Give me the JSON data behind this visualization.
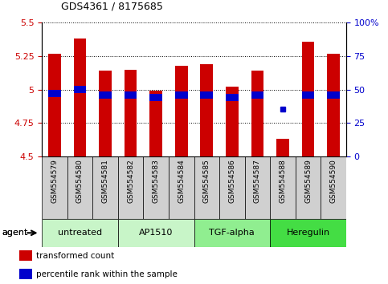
{
  "title": "GDS4361 / 8175685",
  "samples": [
    "GSM554579",
    "GSM554580",
    "GSM554581",
    "GSM554582",
    "GSM554583",
    "GSM554584",
    "GSM554585",
    "GSM554586",
    "GSM554587",
    "GSM554588",
    "GSM554589",
    "GSM554590"
  ],
  "red_values": [
    5.27,
    5.38,
    5.14,
    5.15,
    4.99,
    5.18,
    5.19,
    5.02,
    5.14,
    4.63,
    5.36,
    5.27
  ],
  "blue_values": [
    4.97,
    5.0,
    4.96,
    4.96,
    4.94,
    4.96,
    4.96,
    4.94,
    4.96,
    4.85,
    4.96,
    4.96
  ],
  "blue_is_dot": [
    false,
    false,
    false,
    false,
    false,
    false,
    false,
    false,
    false,
    true,
    false,
    false
  ],
  "ylim_left": [
    4.5,
    5.5
  ],
  "ylim_right": [
    0,
    100
  ],
  "yticks_left": [
    4.5,
    4.75,
    5.0,
    5.25,
    5.5
  ],
  "yticks_right": [
    0,
    25,
    50,
    75,
    100
  ],
  "ytick_labels_left": [
    "4.5",
    "4.75",
    "5",
    "5.25",
    "5.5"
  ],
  "ytick_labels_right": [
    "0",
    "25",
    "50",
    "75",
    "100%"
  ],
  "groups": [
    {
      "label": "untreated",
      "start": 0,
      "end": 3,
      "color": "#c8f5c8"
    },
    {
      "label": "AP1510",
      "start": 3,
      "end": 6,
      "color": "#c8f5c8"
    },
    {
      "label": "TGF-alpha",
      "start": 6,
      "end": 9,
      "color": "#90ee90"
    },
    {
      "label": "Heregulin",
      "start": 9,
      "end": 12,
      "color": "#44dd44"
    }
  ],
  "bar_color": "#cc0000",
  "blue_color": "#0000cc",
  "bar_bottom": 4.5,
  "blue_bar_height": 0.055,
  "legend_items": [
    {
      "color": "#cc0000",
      "label": "transformed count"
    },
    {
      "color": "#0000cc",
      "label": "percentile rank within the sample"
    }
  ],
  "agent_label": "agent",
  "background_color": "#ffffff",
  "xtick_bg": "#d8d8d8",
  "left_tick_color": "#cc0000",
  "right_tick_color": "#0000cc"
}
